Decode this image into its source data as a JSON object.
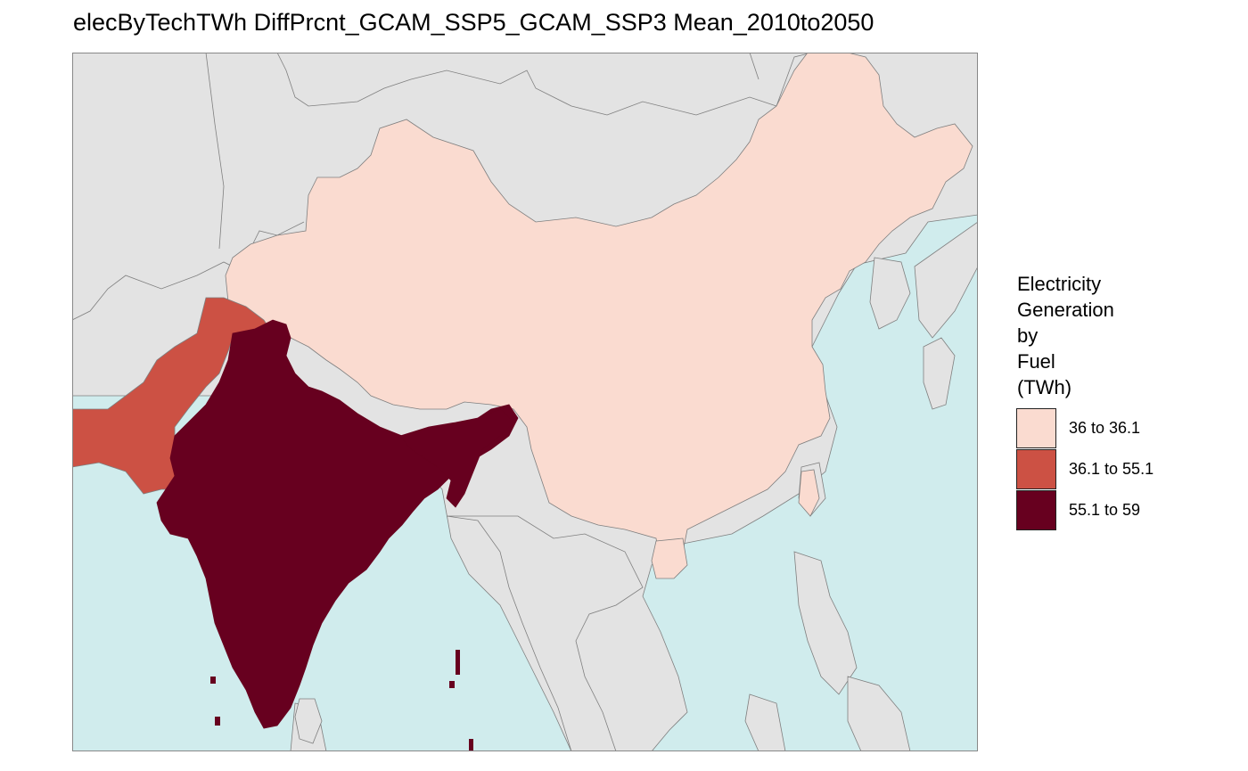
{
  "title": "elecByTechTWh DiffPrcnt_GCAM_SSP5_GCAM_SSP3 Mean_2010to2050",
  "legend": {
    "title_lines": [
      "Electricity",
      "Generation",
      "by",
      "Fuel",
      "(TWh)"
    ],
    "items": [
      {
        "label": "36 to 36.1",
        "color": "#fadbd0"
      },
      {
        "label": "36.1 to 55.1",
        "color": "#cc5144"
      },
      {
        "label": "55.1 to 59",
        "color": "#67001f"
      }
    ]
  },
  "colors": {
    "ocean": "#d0eced",
    "land_no_data": "#e3e3e3",
    "border": "#7f7f7f"
  },
  "regions": [
    {
      "name": "China",
      "class": "36 to 36.1"
    },
    {
      "name": "Pakistan",
      "class": "36.1 to 55.1"
    },
    {
      "name": "India",
      "class": "55.1 to 59"
    }
  ]
}
